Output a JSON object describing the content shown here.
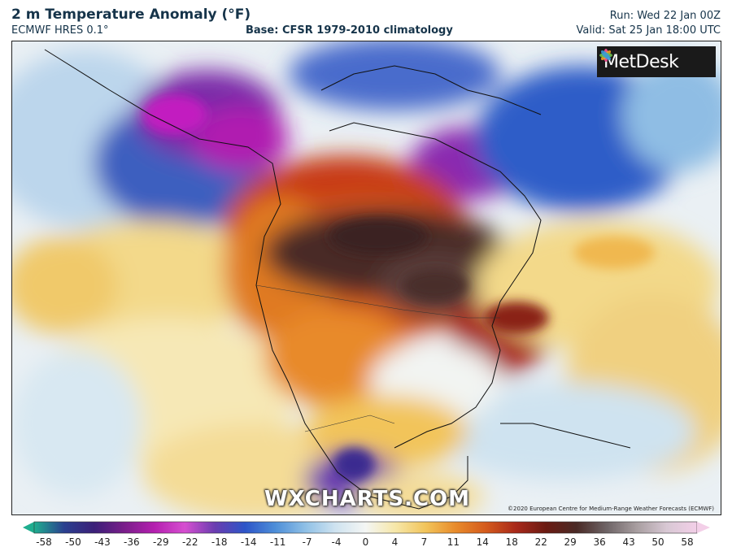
{
  "header": {
    "title": "2 m Temperature Anomaly (°F)",
    "model": "ECMWF HRES 0.1°",
    "base": "Base: CFSR 1979-2010 climatology",
    "run": "Run: Wed 22 Jan 00Z",
    "valid": "Valid: Sat 25 Jan 18:00 UTC"
  },
  "map": {
    "logo": "MetDesk",
    "watermark": "WXCHARTS.COM",
    "copyright": "©2020 European Centre for Medium-Range Weather Forecasts (ECMWF)"
  },
  "colorbar": {
    "ticks": [
      "-58",
      "-50",
      "-43",
      "-36",
      "-29",
      "-22",
      "-18",
      "-14",
      "-11",
      "-7",
      "-4",
      "0",
      "4",
      "7",
      "11",
      "14",
      "18",
      "22",
      "29",
      "36",
      "43",
      "50",
      "58"
    ],
    "colors": [
      "#1fae8f",
      "#2a3f8f",
      "#3b1f78",
      "#7a1d8a",
      "#b51fb0",
      "#d64fd0",
      "#6a3db0",
      "#2d55c8",
      "#4d8ed8",
      "#8fc0e6",
      "#cfe3f0",
      "#f4f6f4",
      "#f6e7a8",
      "#f2c45a",
      "#e88a2a",
      "#d45a1c",
      "#a8281a",
      "#6a1a12",
      "#4a2a26",
      "#6e6466",
      "#a89ea0",
      "#d8c8d4",
      "#f3cfe8"
    ]
  }
}
